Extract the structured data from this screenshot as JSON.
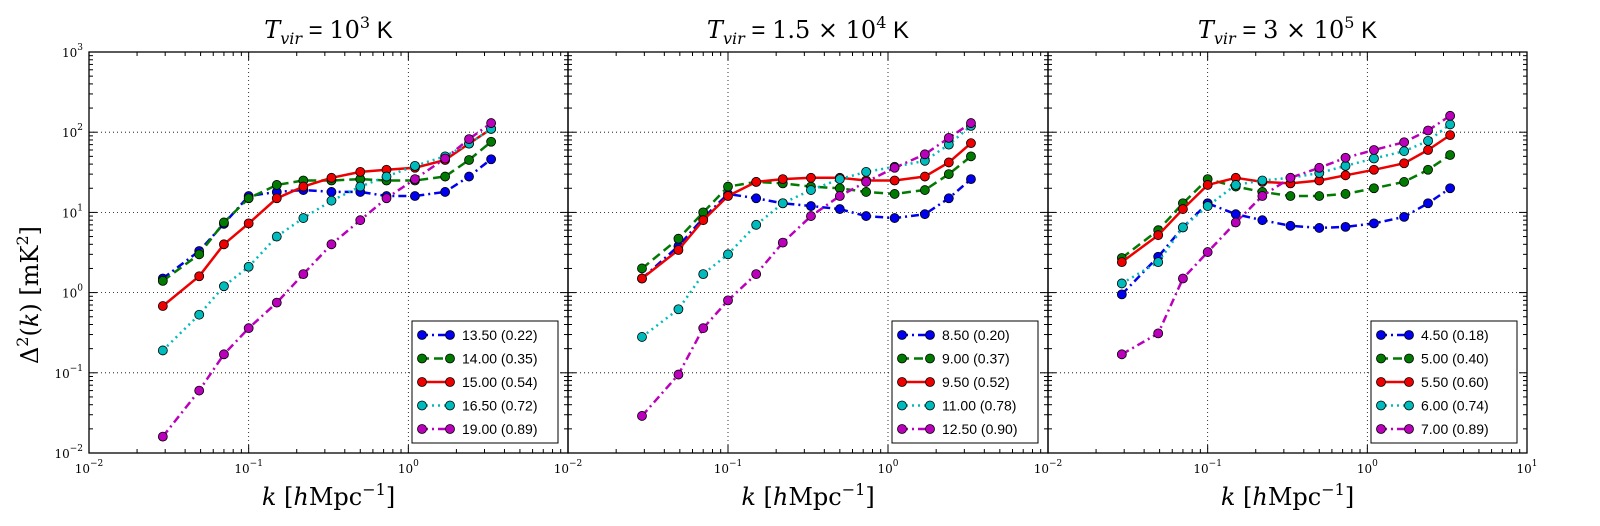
{
  "chart_data": [
    {
      "type": "line",
      "title": "T_vir = 10^3 K",
      "title_parts": {
        "symbol": "T",
        "subscript": "vir",
        "eq": " = ",
        "value": "10",
        "superscript": "3",
        "unit": " K"
      },
      "xlabel": "k [hMpc^-1]",
      "ylabel": "Δ^2(k) [mK^2]",
      "xscale": "log",
      "yscale": "log",
      "xlim": [
        0.01,
        10
      ],
      "ylim": [
        0.01,
        1000
      ],
      "grid": true,
      "legend_position": "lower-right",
      "x": [
        0.029,
        0.049,
        0.07,
        0.1,
        0.15,
        0.22,
        0.33,
        0.5,
        0.73,
        1.1,
        1.7,
        2.4,
        3.3
      ],
      "series": [
        {
          "name": "13.50 (0.22)",
          "color": "#0000ee",
          "style": "dashdot",
          "values": [
            1.5,
            3.3,
            7.2,
            16,
            18,
            19,
            18,
            18,
            16,
            16,
            18,
            28,
            46
          ]
        },
        {
          "name": "14.00 (0.35)",
          "color": "#007a00",
          "style": "dashed",
          "values": [
            1.4,
            3.0,
            7.5,
            15,
            22,
            25,
            25,
            26,
            25,
            25,
            28,
            45,
            76
          ]
        },
        {
          "name": "15.00 (0.54)",
          "color": "#ee0000",
          "style": "solid",
          "values": [
            0.68,
            1.6,
            4.0,
            7.3,
            15,
            21,
            27,
            32,
            34,
            36,
            45,
            72,
            110
          ]
        },
        {
          "name": "16.50 (0.72)",
          "color": "#00bbbb",
          "style": "dotted",
          "values": [
            0.19,
            0.53,
            1.2,
            2.1,
            5.0,
            8.5,
            14,
            21,
            28,
            38,
            50,
            72,
            110
          ]
        },
        {
          "name": "19.00 (0.89)",
          "color": "#bb00bb",
          "style": "dashdot",
          "values": [
            0.016,
            0.06,
            0.17,
            0.36,
            0.75,
            1.7,
            4.0,
            8.0,
            15,
            26,
            47,
            82,
            130
          ]
        }
      ],
      "x_tick_labels": [
        {
          "base": "10",
          "exp": "−2"
        },
        {
          "base": "10",
          "exp": "−1"
        },
        {
          "base": "10",
          "exp": "0"
        }
      ],
      "y_tick_labels": [
        {
          "base": "10",
          "exp": "−2"
        },
        {
          "base": "10",
          "exp": "−1"
        },
        {
          "base": "10",
          "exp": "0"
        },
        {
          "base": "10",
          "exp": "1"
        },
        {
          "base": "10",
          "exp": "2"
        },
        {
          "base": "10",
          "exp": "3"
        }
      ]
    },
    {
      "type": "line",
      "title": "T_vir = 1.5 × 10^4 K",
      "title_parts": {
        "symbol": "T",
        "subscript": "vir",
        "eq": " = ",
        "value": "1.5 × 10",
        "superscript": "4",
        "unit": " K"
      },
      "xlabel": "k [hMpc^-1]",
      "xscale": "log",
      "yscale": "log",
      "xlim": [
        0.01,
        10
      ],
      "ylim": [
        0.01,
        1000
      ],
      "grid": true,
      "legend_position": "lower-right",
      "x": [
        0.029,
        0.049,
        0.07,
        0.1,
        0.15,
        0.22,
        0.33,
        0.5,
        0.73,
        1.1,
        1.7,
        2.4,
        3.3
      ],
      "series": [
        {
          "name": "8.50 (0.20)",
          "color": "#0000ee",
          "style": "dashdot",
          "values": [
            1.5,
            3.8,
            8.5,
            17,
            15,
            13,
            12,
            11,
            9.0,
            8.5,
            9.5,
            15,
            26
          ]
        },
        {
          "name": "9.00 (0.37)",
          "color": "#007a00",
          "style": "dashed",
          "values": [
            2.0,
            4.7,
            10,
            21,
            24,
            23,
            21,
            20,
            18,
            17,
            19,
            30,
            50
          ]
        },
        {
          "name": "9.50 (0.52)",
          "color": "#ee0000",
          "style": "solid",
          "values": [
            1.5,
            3.4,
            8.0,
            16,
            24,
            26,
            27,
            27,
            25,
            25,
            28,
            42,
            73
          ]
        },
        {
          "name": "11.00 (0.78)",
          "color": "#00bbbb",
          "style": "dotted",
          "values": [
            0.28,
            0.62,
            1.7,
            3.0,
            7.0,
            13,
            19,
            26,
            32,
            37,
            44,
            70,
            120
          ]
        },
        {
          "name": "12.50 (0.90)",
          "color": "#bb00bb",
          "style": "dashdot",
          "values": [
            0.029,
            0.095,
            0.36,
            0.8,
            1.7,
            4.2,
            9.0,
            16,
            24,
            36,
            53,
            85,
            130
          ]
        }
      ],
      "x_tick_labels": [
        {
          "base": "10",
          "exp": "−2"
        },
        {
          "base": "10",
          "exp": "−1"
        },
        {
          "base": "10",
          "exp": "0"
        }
      ]
    },
    {
      "type": "line",
      "title": "T_vir = 3 × 10^5 K",
      "title_parts": {
        "symbol": "T",
        "subscript": "vir",
        "eq": " = ",
        "value": "3 × 10",
        "superscript": "5",
        "unit": " K"
      },
      "xlabel": "k [hMpc^-1]",
      "xscale": "log",
      "yscale": "log",
      "xlim": [
        0.01,
        10
      ],
      "ylim": [
        0.01,
        1000
      ],
      "grid": true,
      "legend_position": "lower-right",
      "x": [
        0.029,
        0.049,
        0.07,
        0.1,
        0.15,
        0.22,
        0.33,
        0.5,
        0.73,
        1.1,
        1.7,
        2.4,
        3.3
      ],
      "series": [
        {
          "name": "4.50 (0.18)",
          "color": "#0000ee",
          "style": "dashdot",
          "values": [
            0.95,
            2.8,
            6.5,
            13,
            9.5,
            8.0,
            6.8,
            6.4,
            6.6,
            7.3,
            8.8,
            13,
            20
          ]
        },
        {
          "name": "5.00 (0.40)",
          "color": "#007a00",
          "style": "dashed",
          "values": [
            2.7,
            6.0,
            13,
            26,
            21,
            18,
            16,
            16,
            17,
            20,
            24,
            34,
            52
          ]
        },
        {
          "name": "5.50 (0.60)",
          "color": "#ee0000",
          "style": "solid",
          "values": [
            2.4,
            5.2,
            11,
            22,
            27,
            24,
            23,
            25,
            29,
            34,
            41,
            60,
            92
          ]
        },
        {
          "name": "6.00 (0.74)",
          "color": "#00bbbb",
          "style": "dotted",
          "values": [
            1.3,
            2.4,
            6.5,
            12,
            22,
            25,
            27,
            31,
            38,
            47,
            58,
            78,
            125
          ]
        },
        {
          "name": "7.00 (0.89)",
          "color": "#bb00bb",
          "style": "dashdot",
          "values": [
            0.17,
            0.31,
            1.5,
            3.2,
            7.5,
            16,
            27,
            36,
            48,
            60,
            75,
            105,
            160
          ]
        }
      ],
      "x_tick_labels": [
        {
          "base": "10",
          "exp": "−2"
        },
        {
          "base": "10",
          "exp": "−1"
        },
        {
          "base": "10",
          "exp": "0"
        },
        {
          "base": "10",
          "exp": "1"
        }
      ]
    }
  ]
}
